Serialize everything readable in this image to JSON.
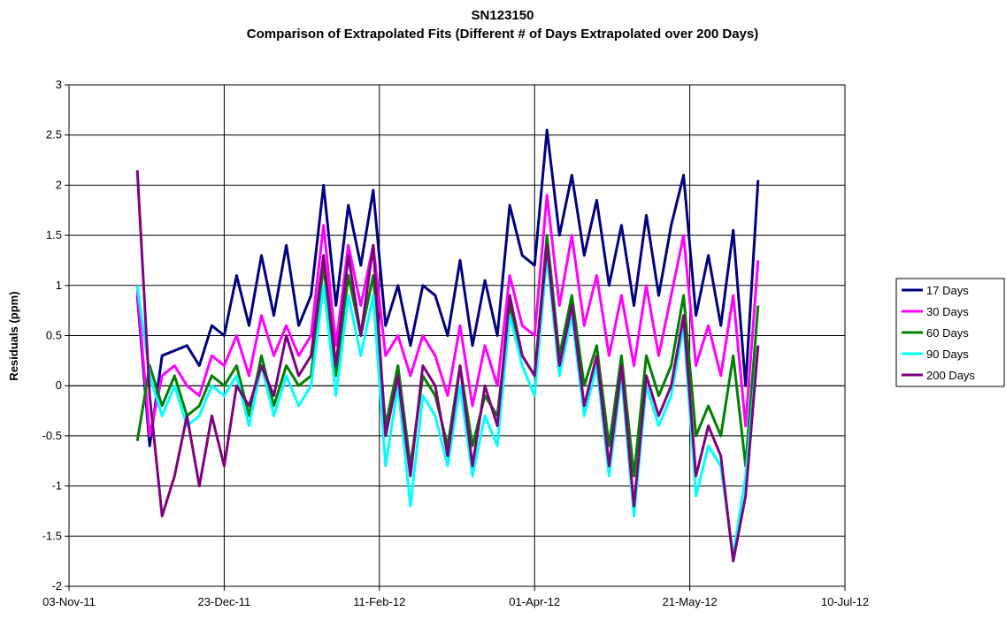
{
  "chart_data": {
    "type": "line",
    "title": "SN123150",
    "subtitle": "Comparison of Extrapolated Fits (Different # of Days Extrapolated over 200 Days)",
    "y_label": "Residuals (ppm)",
    "x": [
      "2011-11-25",
      "2011-11-29",
      "2011-12-03",
      "2011-12-07",
      "2011-12-11",
      "2011-12-15",
      "2011-12-19",
      "2011-12-23",
      "2011-12-27",
      "2011-12-31",
      "2012-01-04",
      "2012-01-08",
      "2012-01-12",
      "2012-01-16",
      "2012-01-20",
      "2012-01-24",
      "2012-01-28",
      "2012-02-01",
      "2012-02-05",
      "2012-02-09",
      "2012-02-13",
      "2012-02-17",
      "2012-02-21",
      "2012-02-25",
      "2012-02-29",
      "2012-03-04",
      "2012-03-08",
      "2012-03-12",
      "2012-03-16",
      "2012-03-20",
      "2012-03-24",
      "2012-03-28",
      "2012-04-01",
      "2012-04-05",
      "2012-04-09",
      "2012-04-13",
      "2012-04-17",
      "2012-04-21",
      "2012-04-25",
      "2012-04-29",
      "2012-05-03",
      "2012-05-07",
      "2012-05-11",
      "2012-05-15",
      "2012-05-19",
      "2012-05-23",
      "2012-05-27",
      "2012-05-31",
      "2012-06-04",
      "2012-06-08",
      "2012-06-12"
    ],
    "series": [
      {
        "name": "17 Days",
        "color": "#000080",
        "values": [
          0.9,
          -0.6,
          0.3,
          0.35,
          0.4,
          0.2,
          0.6,
          0.5,
          1.1,
          0.6,
          1.3,
          0.7,
          1.4,
          0.6,
          0.9,
          2.0,
          0.8,
          1.8,
          1.2,
          1.95,
          0.6,
          1.0,
          0.4,
          1.0,
          0.9,
          0.5,
          1.25,
          0.4,
          1.05,
          0.5,
          1.8,
          1.3,
          1.2,
          2.55,
          1.5,
          2.1,
          1.3,
          1.85,
          1.0,
          1.6,
          0.8,
          1.7,
          0.9,
          1.6,
          2.1,
          0.7,
          1.3,
          0.6,
          1.55,
          0.0,
          2.05
        ]
      },
      {
        "name": "30 Days",
        "color": "#ff00ff",
        "values": [
          0.95,
          -0.5,
          0.1,
          0.2,
          0.0,
          -0.1,
          0.3,
          0.2,
          0.5,
          0.1,
          0.7,
          0.3,
          0.6,
          0.3,
          0.5,
          1.6,
          0.4,
          1.4,
          0.8,
          1.4,
          0.3,
          0.5,
          0.1,
          0.5,
          0.3,
          -0.1,
          0.6,
          -0.2,
          0.4,
          0.0,
          1.1,
          0.6,
          0.5,
          1.9,
          0.8,
          1.5,
          0.6,
          1.1,
          0.3,
          0.9,
          0.2,
          1.0,
          0.3,
          0.9,
          1.5,
          0.2,
          0.6,
          0.1,
          0.9,
          -0.4,
          1.25
        ]
      },
      {
        "name": "60 Days",
        "color": "#008000",
        "values": [
          -0.55,
          0.2,
          -0.2,
          0.1,
          -0.3,
          -0.2,
          0.1,
          0.0,
          0.2,
          -0.3,
          0.3,
          -0.2,
          0.2,
          0.0,
          0.1,
          1.2,
          0.1,
          1.1,
          0.5,
          1.1,
          -0.4,
          0.2,
          -0.8,
          0.1,
          -0.1,
          -0.6,
          0.2,
          -0.6,
          -0.1,
          -0.3,
          0.8,
          0.3,
          0.1,
          1.5,
          0.3,
          0.9,
          0.0,
          0.4,
          -0.6,
          0.3,
          -0.9,
          0.3,
          -0.1,
          0.2,
          0.9,
          -0.5,
          -0.2,
          -0.5,
          0.3,
          -0.8,
          0.8
        ]
      },
      {
        "name": "90 Days",
        "color": "#00ffff",
        "values": [
          1.0,
          0.1,
          -0.3,
          0.0,
          -0.4,
          -0.3,
          0.0,
          -0.1,
          0.1,
          -0.4,
          0.2,
          -0.3,
          0.1,
          -0.2,
          0.0,
          1.0,
          -0.1,
          0.9,
          0.3,
          0.9,
          -0.8,
          0.0,
          -1.2,
          -0.1,
          -0.3,
          -0.8,
          0.0,
          -0.9,
          -0.3,
          -0.6,
          0.7,
          0.2,
          -0.1,
          1.3,
          0.1,
          0.7,
          -0.3,
          0.2,
          -0.9,
          0.1,
          -1.3,
          0.0,
          -0.4,
          -0.1,
          0.6,
          -1.1,
          -0.6,
          -0.8,
          -1.7,
          -0.9,
          0.4
        ]
      },
      {
        "name": "200 Days",
        "color": "#800080",
        "values": [
          2.15,
          -0.1,
          -1.3,
          -0.9,
          -0.3,
          -1.0,
          -0.3,
          -0.8,
          0.0,
          -0.2,
          0.2,
          -0.1,
          0.5,
          0.1,
          0.3,
          1.3,
          0.2,
          1.3,
          0.5,
          1.4,
          -0.5,
          0.1,
          -0.9,
          0.2,
          0.0,
          -0.7,
          0.2,
          -0.8,
          0.0,
          -0.4,
          0.9,
          0.3,
          0.1,
          1.4,
          0.2,
          0.8,
          -0.2,
          0.3,
          -0.8,
          0.2,
          -1.2,
          0.1,
          -0.3,
          0.0,
          0.7,
          -0.9,
          -0.4,
          -0.7,
          -1.75,
          -1.1,
          0.4
        ]
      }
    ],
    "xlim": [
      "2011-11-03",
      "2012-07-10"
    ],
    "xticks": [
      {
        "value": "2011-11-03",
        "label": "03-Nov-11"
      },
      {
        "value": "2011-12-23",
        "label": "23-Dec-11"
      },
      {
        "value": "2012-02-11",
        "label": "11-Feb-12"
      },
      {
        "value": "2012-04-01",
        "label": "01-Apr-12"
      },
      {
        "value": "2012-05-21",
        "label": "21-May-12"
      },
      {
        "value": "2012-07-10",
        "label": "10-Jul-12"
      }
    ],
    "ylim": [
      -2,
      3
    ],
    "yticks": [
      -2,
      -1.5,
      -1,
      -0.5,
      0,
      0.5,
      1,
      1.5,
      2,
      2.5,
      3
    ],
    "grid": true,
    "legend": "right"
  }
}
